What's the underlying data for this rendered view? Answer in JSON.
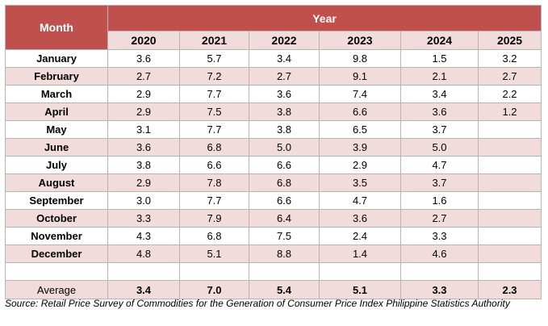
{
  "header": {
    "month_label": "Month",
    "year_label": "Year"
  },
  "years": [
    "2020",
    "2021",
    "2022",
    "2023",
    "2024",
    "2025"
  ],
  "rows": [
    {
      "month": "January",
      "values": [
        "3.6",
        "5.7",
        "3.4",
        "9.8",
        "1.5",
        "3.2"
      ]
    },
    {
      "month": "February",
      "values": [
        "2.7",
        "7.2",
        "2.7",
        "9.1",
        "2.1",
        "2.7"
      ]
    },
    {
      "month": "March",
      "values": [
        "2.9",
        "7.7",
        "3.6",
        "7.4",
        "3.4",
        "2.2"
      ]
    },
    {
      "month": "April",
      "values": [
        "2.9",
        "7.5",
        "3.8",
        "6.6",
        "3.6",
        "1.2"
      ]
    },
    {
      "month": "May",
      "values": [
        "3.1",
        "7.7",
        "3.8",
        "6.5",
        "3.7",
        ""
      ]
    },
    {
      "month": "June",
      "values": [
        "3.6",
        "6.8",
        "5.0",
        "3.9",
        "5.0",
        ""
      ]
    },
    {
      "month": "July",
      "values": [
        "3.8",
        "6.6",
        "6.6",
        "2.9",
        "4.7",
        ""
      ]
    },
    {
      "month": "August",
      "values": [
        "2.9",
        "7.8",
        "6.8",
        "3.5",
        "3.7",
        ""
      ]
    },
    {
      "month": "September",
      "values": [
        "3.0",
        "7.7",
        "6.6",
        "4.7",
        "1.6",
        ""
      ]
    },
    {
      "month": "October",
      "values": [
        "3.3",
        "7.9",
        "6.4",
        "3.6",
        "2.7",
        ""
      ]
    },
    {
      "month": "November",
      "values": [
        "4.3",
        "6.8",
        "7.5",
        "2.4",
        "3.3",
        ""
      ]
    },
    {
      "month": "December",
      "values": [
        "4.8",
        "5.1",
        "8.8",
        "1.4",
        "4.6",
        ""
      ]
    }
  ],
  "average": {
    "label": "Average",
    "values": [
      "3.4",
      "7.0",
      "5.4",
      "5.1",
      "3.3",
      "2.3"
    ]
  },
  "source": "Source: Retail Price Survey of Commodities for the Generation of Consumer Price Index Philippine Statistics Authority",
  "colors": {
    "header_bg": "#c0504d",
    "alt_row_bg": "#f2dcdb",
    "border": "#b5b5b5"
  }
}
